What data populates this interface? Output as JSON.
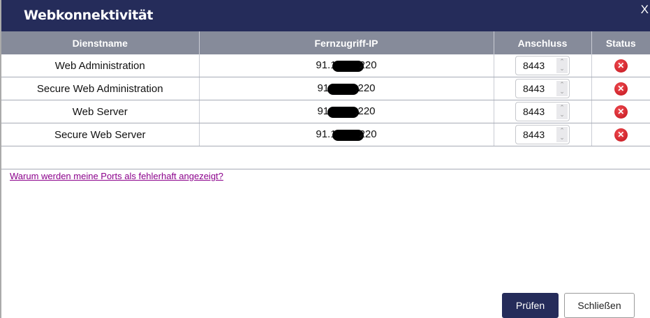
{
  "dialog": {
    "title": "Webkonnektivität",
    "close_label": "X"
  },
  "table": {
    "headers": [
      "Dienstname",
      "Fernzugriff-IP",
      "Anschluss",
      "Status"
    ],
    "rows": [
      {
        "name": "Web Administration",
        "ip_prefix": "91.1",
        "ip_suffix": "220",
        "port": "8443",
        "status": "error"
      },
      {
        "name": "Secure Web Administration",
        "ip_prefix": "91.",
        "ip_suffix": ".220",
        "port": "8443",
        "status": "error"
      },
      {
        "name": "Web Server",
        "ip_prefix": "91.",
        "ip_suffix": ".220",
        "port": "8443",
        "status": "error"
      },
      {
        "name": "Secure Web Server",
        "ip_prefix": "91.1",
        "ip_suffix": "220",
        "port": "8443",
        "status": "error"
      }
    ]
  },
  "help_link": "Warum werden meine Ports als fehlerhaft angezeigt?",
  "buttons": {
    "check": "Prüfen",
    "close": "Schließen"
  },
  "colors": {
    "titlebar": "#252c5a",
    "header": "#868b9a",
    "error": "#d0202a",
    "link": "#8b008b"
  }
}
